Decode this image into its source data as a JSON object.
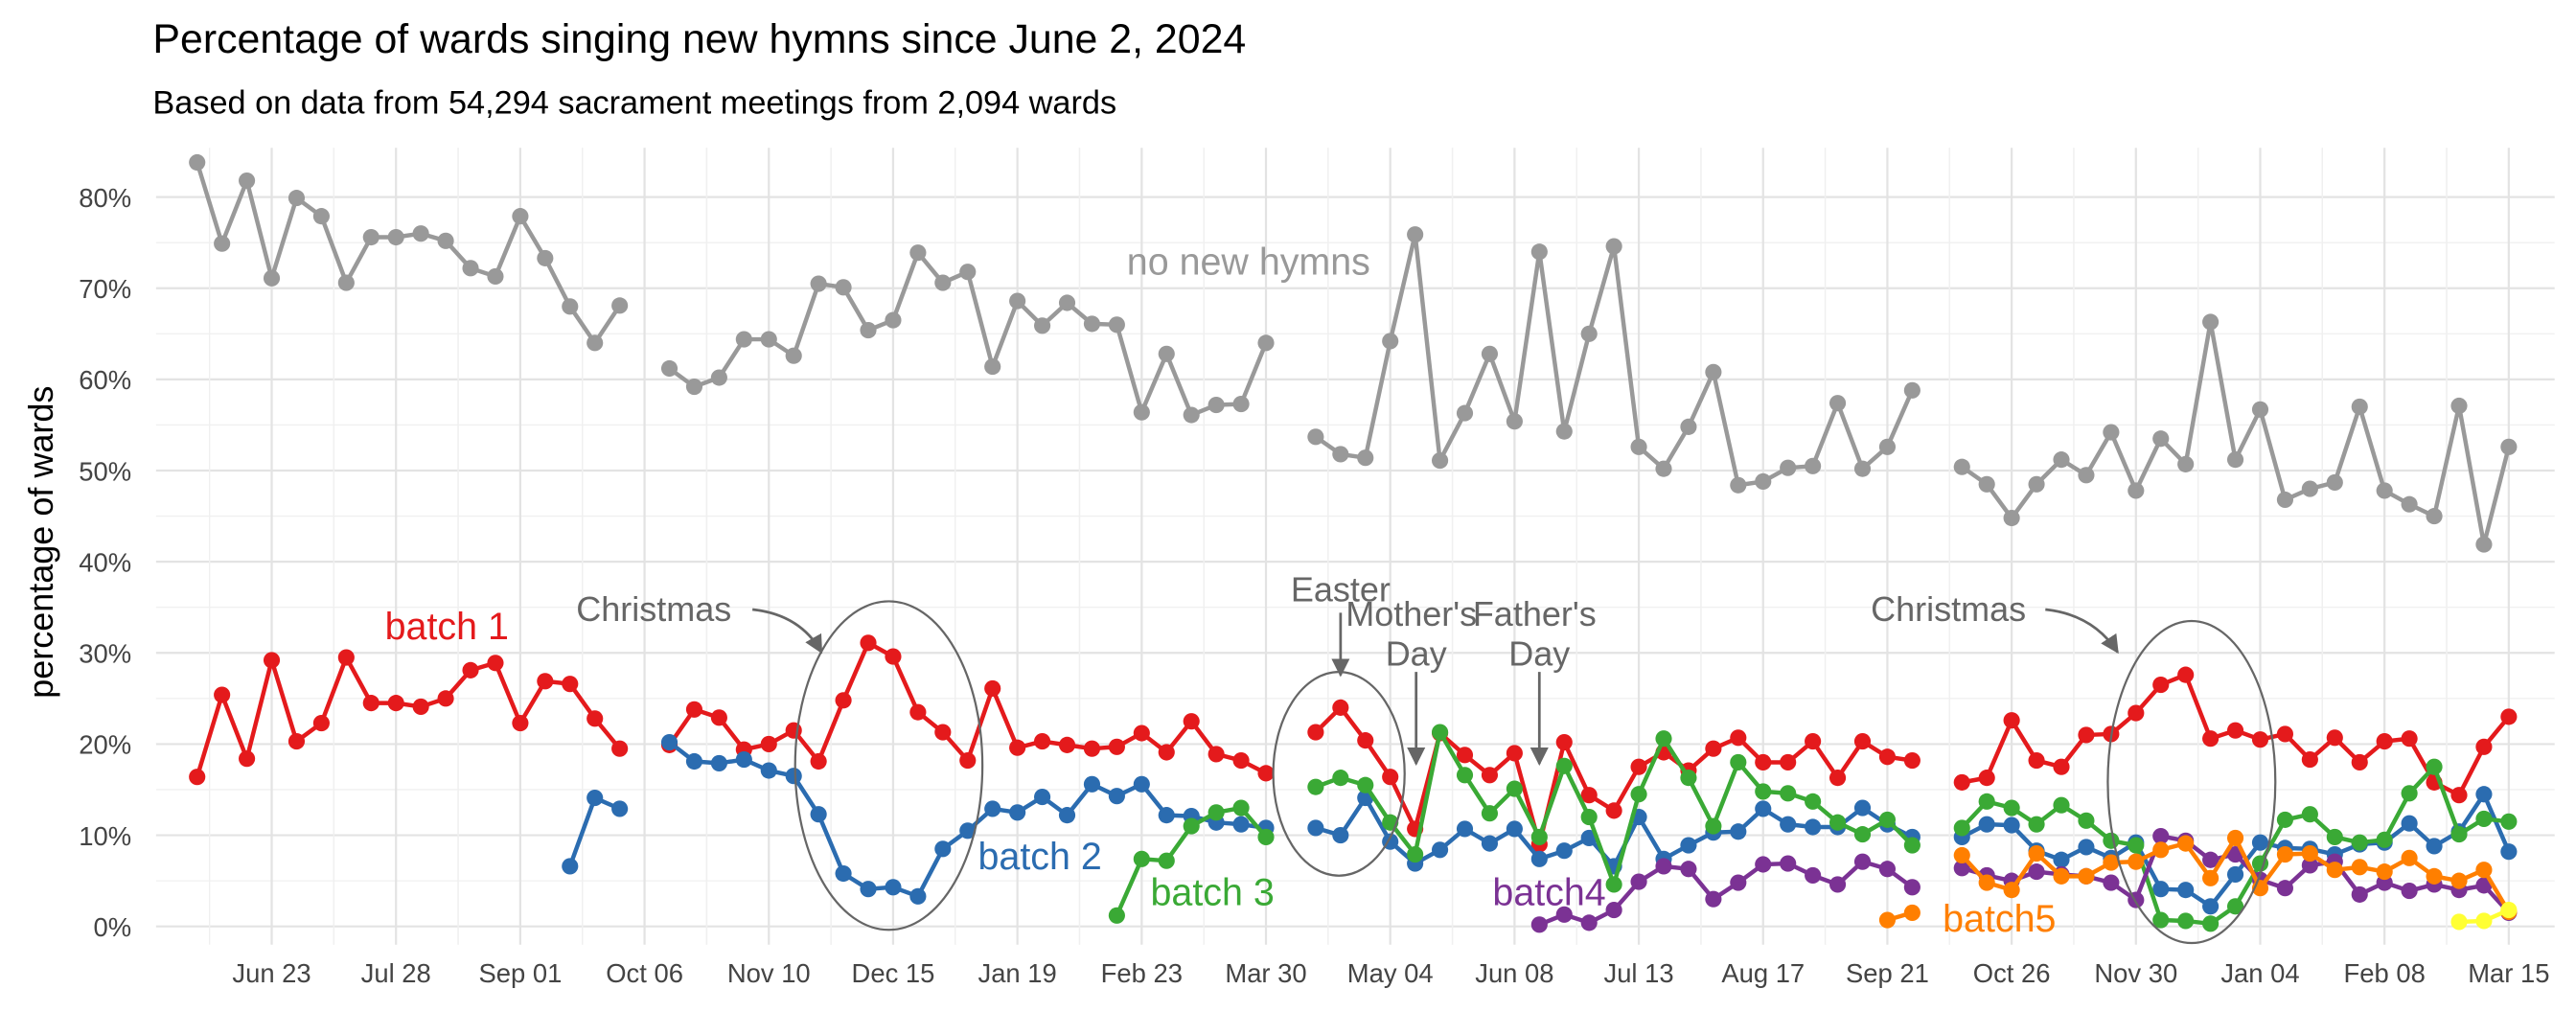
{
  "chart_data": {
    "type": "line",
    "title": "Percentage of wards singing new hymns since June 2, 2024",
    "subtitle": "Based on data from 54,294 sacrament meetings from 2,094 wards",
    "y_label": "percentage of wards",
    "categories": [
      null,
      null,
      null,
      "Jun 23",
      null,
      null,
      null,
      null,
      "Jul 28",
      null,
      null,
      null,
      null,
      "Sep 01",
      null,
      null,
      null,
      null,
      "Oct 06",
      null,
      null,
      null,
      null,
      "Nov 10",
      null,
      null,
      null,
      null,
      "Dec 15",
      null,
      null,
      null,
      null,
      "Jan 19",
      null,
      null,
      null,
      null,
      "Feb 23",
      null,
      null,
      null,
      null,
      "Mar 30",
      null,
      null,
      null,
      null,
      "May 04",
      null,
      null,
      null,
      null,
      "Jun 08",
      null,
      null,
      null,
      null,
      "Jul 13",
      null,
      null,
      null,
      null,
      "Aug 17",
      null,
      null,
      null,
      null,
      "Sep 21",
      null,
      null,
      null,
      null,
      "Oct 26",
      null,
      null,
      null,
      null,
      "Nov 30",
      null,
      null,
      null,
      null,
      "Jan 04",
      null,
      null,
      null,
      null,
      "Feb 08",
      null,
      null,
      null,
      null,
      "Mar 15"
    ],
    "ylim": [
      -2,
      85.4
    ],
    "yticks": [
      {
        "value": 0,
        "label": "0%"
      },
      {
        "value": 10,
        "label": "10%"
      },
      {
        "value": 20,
        "label": "20%"
      },
      {
        "value": 30,
        "label": "30%"
      },
      {
        "value": 40,
        "label": "40%"
      },
      {
        "value": 50,
        "label": "50%"
      },
      {
        "value": 60,
        "label": "60%"
      },
      {
        "value": 70,
        "label": "70%"
      },
      {
        "value": 80,
        "label": "80%"
      }
    ],
    "grid": true,
    "series": [
      {
        "name": "no new hymns",
        "color": "#999999",
        "values": [
          83.8,
          74.9,
          81.8,
          71.1,
          79.9,
          77.9,
          70.6,
          75.6,
          75.6,
          76,
          75.2,
          72.2,
          71.3,
          77.9,
          73.3,
          68,
          64,
          68.1,
          null,
          61.2,
          59.2,
          60.2,
          64.4,
          64.4,
          62.6,
          70.5,
          70.1,
          65.4,
          66.5,
          73.9,
          70.6,
          71.8,
          61.4,
          68.6,
          65.9,
          68.4,
          66.1,
          66,
          56.4,
          62.8,
          56.1,
          57.2,
          57.3,
          64,
          null,
          53.7,
          51.8,
          51.4,
          64.2,
          75.9,
          51.1,
          56.3,
          62.8,
          55.4,
          74,
          54.3,
          65,
          74.6,
          52.6,
          50.2,
          54.8,
          60.8,
          48.4,
          48.8,
          50.3,
          50.5,
          57.4,
          50.2,
          52.6,
          58.8,
          null,
          50.4,
          48.5,
          44.8,
          48.5,
          51.2,
          49.5,
          54.2,
          47.8,
          53.5,
          50.7,
          66.3,
          51.2,
          56.7,
          46.8,
          48,
          48.7,
          57,
          47.8,
          46.3,
          45,
          57.1,
          41.9,
          52.6
        ]
      },
      {
        "name": "batch 1",
        "color": "#e41a1c",
        "values": [
          16.4,
          25.4,
          18.4,
          29.2,
          20.3,
          22.3,
          29.5,
          24.5,
          24.5,
          24.1,
          25,
          28.1,
          28.9,
          22.3,
          26.9,
          26.6,
          22.8,
          19.5,
          null,
          19.9,
          23.8,
          22.9,
          19.4,
          20,
          21.5,
          18.1,
          24.8,
          31.1,
          29.6,
          23.5,
          21.3,
          18.2,
          26.1,
          19.6,
          20.3,
          19.9,
          19.5,
          19.7,
          21.2,
          19.1,
          22.5,
          18.9,
          18.2,
          16.8,
          null,
          21.3,
          24,
          20.4,
          16.4,
          10.7,
          21.2,
          18.8,
          16.6,
          19,
          9,
          20.2,
          14.4,
          12.7,
          17.5,
          19.1,
          17.1,
          19.5,
          20.7,
          18,
          18,
          20.3,
          16.3,
          20.3,
          18.6,
          18.2,
          null,
          15.8,
          16.3,
          22.6,
          18.2,
          17.5,
          21,
          21.1,
          23.4,
          26.5,
          27.6,
          20.6,
          21.5,
          20.5,
          21.1,
          18.3,
          20.7,
          18,
          20.3,
          20.6,
          15.8,
          14.4,
          19.7,
          23
        ]
      },
      {
        "name": "batch 2",
        "color": "#2b6cb0",
        "values": [
          null,
          null,
          null,
          null,
          null,
          null,
          null,
          null,
          null,
          null,
          null,
          null,
          null,
          null,
          null,
          6.6,
          14.1,
          12.9,
          null,
          20.2,
          18.1,
          17.9,
          18.3,
          17.1,
          16.5,
          12.3,
          5.8,
          4.1,
          4.3,
          3.3,
          8.5,
          10.5,
          12.9,
          12.5,
          14.2,
          12.2,
          15.6,
          14.3,
          15.6,
          12.2,
          12.1,
          11.4,
          11.2,
          10.8,
          null,
          10.8,
          10,
          14.1,
          9.3,
          6.9,
          8.4,
          10.7,
          9.1,
          10.7,
          7.4,
          8.3,
          9.7,
          6.6,
          12,
          7.4,
          8.9,
          10.3,
          10.4,
          12.9,
          11.2,
          10.9,
          10.9,
          13,
          11.2,
          9.8,
          null,
          9.8,
          11.2,
          11.1,
          8.3,
          7.3,
          8.7,
          7.5,
          9.2,
          4.1,
          4,
          2.2,
          5.7,
          9.2,
          8.6,
          8.5,
          7.9,
          9,
          9.2,
          11.3,
          8.8,
          10.4,
          14.5,
          8.2
        ]
      },
      {
        "name": "batch 3",
        "color": "#3aa935",
        "values": [
          null,
          null,
          null,
          null,
          null,
          null,
          null,
          null,
          null,
          null,
          null,
          null,
          null,
          null,
          null,
          null,
          null,
          null,
          null,
          null,
          null,
          null,
          null,
          null,
          null,
          null,
          null,
          null,
          null,
          null,
          null,
          null,
          null,
          null,
          null,
          null,
          null,
          1.2,
          7.4,
          7.2,
          11,
          12.5,
          13,
          9.8,
          null,
          15.3,
          16.3,
          15.5,
          11.4,
          7.9,
          21.3,
          16.6,
          12.4,
          15.1,
          9.8,
          17.6,
          12,
          4.6,
          14.5,
          20.6,
          16.3,
          11,
          18,
          14.8,
          14.6,
          13.7,
          11.4,
          10.1,
          11.7,
          8.9,
          null,
          10.8,
          13.7,
          13,
          11.2,
          13.3,
          11.6,
          9.4,
          8.9,
          0.7,
          0.6,
          0.3,
          2.2,
          6.9,
          11.7,
          12.3,
          9.8,
          9.2,
          9.5,
          14.6,
          17.5,
          10.1,
          11.8,
          11.5
        ]
      },
      {
        "name": "batch4",
        "color": "#7b3294",
        "values": [
          null,
          null,
          null,
          null,
          null,
          null,
          null,
          null,
          null,
          null,
          null,
          null,
          null,
          null,
          null,
          null,
          null,
          null,
          null,
          null,
          null,
          null,
          null,
          null,
          null,
          null,
          null,
          null,
          null,
          null,
          null,
          null,
          null,
          null,
          null,
          null,
          null,
          null,
          null,
          null,
          null,
          null,
          null,
          null,
          null,
          null,
          null,
          null,
          null,
          null,
          null,
          null,
          null,
          null,
          0.2,
          1.3,
          0.4,
          1.8,
          4.9,
          6.6,
          6.3,
          3,
          4.8,
          6.8,
          6.9,
          5.6,
          4.6,
          7.1,
          6.3,
          4.3,
          null,
          6.4,
          5.6,
          5,
          6,
          5.7,
          5.5,
          4.8,
          2.9,
          9.9,
          9.4,
          7.3,
          7.9,
          5.1,
          4.2,
          6.7,
          7.1,
          3.5,
          4.8,
          3.9,
          4.6,
          4,
          4.5,
          1.5
        ]
      },
      {
        "name": "batch5",
        "color": "#ff7f00",
        "values": [
          null,
          null,
          null,
          null,
          null,
          null,
          null,
          null,
          null,
          null,
          null,
          null,
          null,
          null,
          null,
          null,
          null,
          null,
          null,
          null,
          null,
          null,
          null,
          null,
          null,
          null,
          null,
          null,
          null,
          null,
          null,
          null,
          null,
          null,
          null,
          null,
          null,
          null,
          null,
          null,
          null,
          null,
          null,
          null,
          null,
          null,
          null,
          null,
          null,
          null,
          null,
          null,
          null,
          null,
          null,
          null,
          null,
          null,
          null,
          null,
          null,
          null,
          null,
          null,
          null,
          null,
          null,
          null,
          0.7,
          1.5,
          null,
          7.8,
          4.8,
          4,
          8,
          5.5,
          5.5,
          7,
          7.1,
          8.4,
          9.1,
          5.3,
          9.7,
          4.2,
          7.9,
          8,
          6.2,
          6.5,
          6,
          7.5,
          5.5,
          5,
          6.2,
          1.6
        ]
      },
      {
        "color": "#ffff33",
        "values": [
          null,
          null,
          null,
          null,
          null,
          null,
          null,
          null,
          null,
          null,
          null,
          null,
          null,
          null,
          null,
          null,
          null,
          null,
          null,
          null,
          null,
          null,
          null,
          null,
          null,
          null,
          null,
          null,
          null,
          null,
          null,
          null,
          null,
          null,
          null,
          null,
          null,
          null,
          null,
          null,
          null,
          null,
          null,
          null,
          null,
          null,
          null,
          null,
          null,
          null,
          null,
          null,
          null,
          null,
          null,
          null,
          null,
          null,
          null,
          null,
          null,
          null,
          null,
          null,
          null,
          null,
          null,
          null,
          null,
          null,
          null,
          null,
          null,
          null,
          null,
          null,
          null,
          null,
          null,
          null,
          null,
          null,
          null,
          null,
          null,
          null,
          null,
          null,
          null,
          null,
          null,
          0.5,
          0.6,
          1.8
        ]
      }
    ],
    "annotations": [
      "Christmas",
      "Easter",
      "Mother's Day",
      "Father's Day",
      "Christmas"
    ]
  }
}
